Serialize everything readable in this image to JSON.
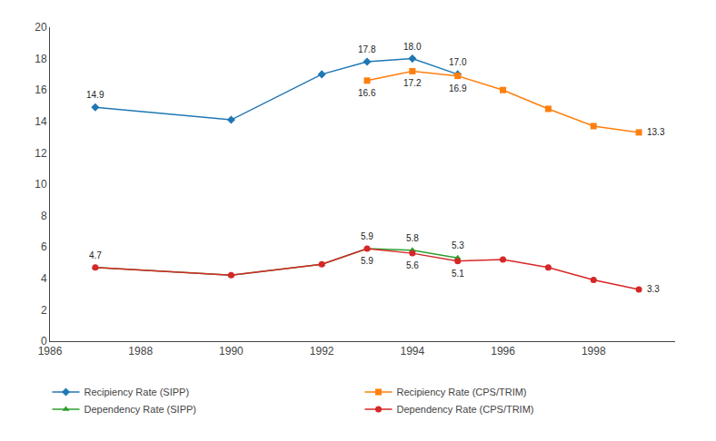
{
  "chart_data": {
    "type": "line",
    "series": [
      {
        "name": "Recipiency Rate (SIPP)",
        "marker": "diamond",
        "x": [
          1987,
          1990,
          1992,
          1993,
          1994,
          1995
        ],
        "values": [
          14.9,
          14.1,
          17.0,
          17.8,
          18.0,
          17.0
        ]
      },
      {
        "name": "Recipiency Rate (CPS/TRIM)",
        "marker": "square",
        "x": [
          1993,
          1994,
          1995,
          1996,
          1997,
          1998,
          1999
        ],
        "values": [
          16.6,
          17.2,
          16.9,
          16.0,
          14.8,
          13.7,
          13.3
        ]
      },
      {
        "name": "Dependency Rate (SIPP)",
        "marker": "triangle-up",
        "x": [
          1987,
          1990,
          1992,
          1993,
          1994,
          1995
        ],
        "values": [
          4.7,
          4.2,
          4.9,
          5.9,
          5.8,
          5.3
        ]
      },
      {
        "name": "Dependency Rate (CPS/TRIM)",
        "marker": "circle",
        "x": [
          1987,
          1990,
          1992,
          1993,
          1994,
          1995,
          1996,
          1997,
          1998,
          1999
        ],
        "values": [
          4.7,
          4.2,
          4.9,
          5.9,
          5.6,
          5.1,
          5.2,
          4.7,
          3.9,
          3.3
        ]
      }
    ],
    "annotations": [
      {
        "series": "Recipiency Rate (SIPP)",
        "x": 1987,
        "y": 14.9,
        "text": "14.9"
      },
      {
        "series": "Recipiency Rate (SIPP)",
        "x": 1993,
        "y": 17.8,
        "text": "17.8"
      },
      {
        "series": "Recipiency Rate (SIPP)",
        "x": 1994,
        "y": 18.0,
        "text": "18.0"
      },
      {
        "series": "Recipiency Rate (SIPP)",
        "x": 1995,
        "y": 17.0,
        "text": "17.0"
      },
      {
        "series": "Recipiency Rate (CPS/TRIM)",
        "x": 1993,
        "y": 16.6,
        "text": "16.6"
      },
      {
        "series": "Recipiency Rate (CPS/TRIM)",
        "x": 1994,
        "y": 17.2,
        "text": "17.2"
      },
      {
        "series": "Recipiency Rate (CPS/TRIM)",
        "x": 1995,
        "y": 16.9,
        "text": "16.9"
      },
      {
        "series": "Recipiency Rate (CPS/TRIM)",
        "x": 1999,
        "y": 13.3,
        "text": "13.3"
      },
      {
        "series": "Dependency Rate (SIPP)",
        "x": 1987,
        "y": 4.7,
        "text": "4.7"
      },
      {
        "series": "Dependency Rate (SIPP)",
        "x": 1993,
        "y": 5.9,
        "text": "5.9"
      },
      {
        "series": "Dependency Rate (SIPP)",
        "x": 1994,
        "y": 5.8,
        "text": "5.8"
      },
      {
        "series": "Dependency Rate (SIPP)",
        "x": 1995,
        "y": 5.3,
        "text": "5.3"
      },
      {
        "series": "Dependency Rate (CPS/TRIM)",
        "x": 1993,
        "y": 5.9,
        "text": "5.9"
      },
      {
        "series": "Dependency Rate (CPS/TRIM)",
        "x": 1994,
        "y": 5.6,
        "text": "5.6"
      },
      {
        "series": "Dependency Rate (CPS/TRIM)",
        "x": 1995,
        "y": 5.1,
        "text": "5.1"
      },
      {
        "series": "Dependency Rate (CPS/TRIM)",
        "x": 1999,
        "y": 3.3,
        "text": "3.3"
      }
    ],
    "xlim": [
      1986,
      1999.8
    ],
    "ylim": [
      0,
      20
    ],
    "xticks": [
      1986,
      1988,
      1990,
      1992,
      1994,
      1996,
      1998
    ],
    "yticks": [
      0,
      2,
      4,
      6,
      8,
      10,
      12,
      14,
      16,
      18,
      20
    ],
    "grid": false,
    "legend": "bottom"
  }
}
